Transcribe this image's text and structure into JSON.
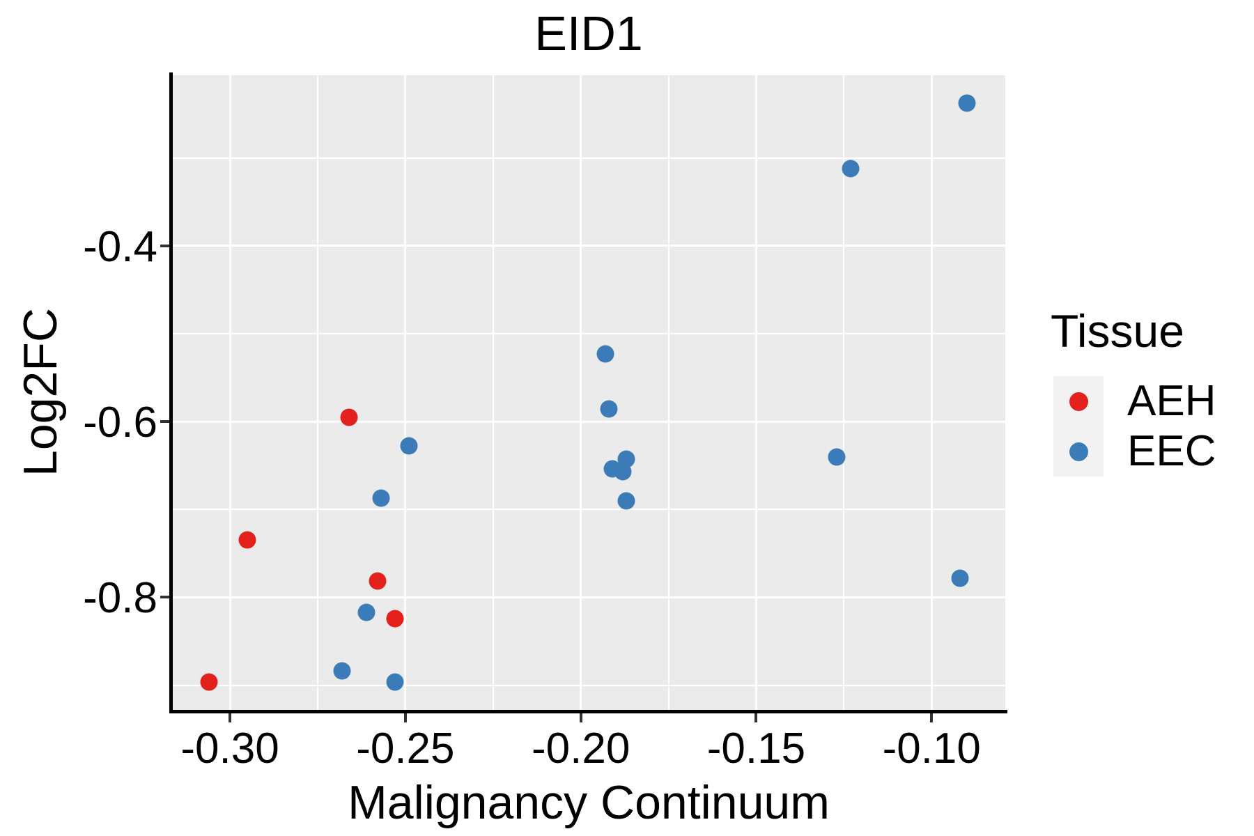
{
  "title": "EID1",
  "axes": {
    "x": {
      "label": "Malignancy Continuum",
      "domain": [
        -0.3165,
        -0.079
      ],
      "major_ticks": [
        {
          "value": -0.3,
          "label": "-0.30"
        },
        {
          "value": -0.25,
          "label": "-0.25"
        },
        {
          "value": -0.2,
          "label": "-0.20"
        },
        {
          "value": -0.15,
          "label": "-0.15"
        },
        {
          "value": -0.1,
          "label": "-0.10"
        }
      ],
      "minor_gridlines": [
        -0.275,
        -0.225,
        -0.175,
        -0.125
      ]
    },
    "y": {
      "label": "Log2FC",
      "domain": [
        -0.928,
        -0.206
      ],
      "major_ticks": [
        {
          "value": -0.4,
          "label": "-0.4"
        },
        {
          "value": -0.6,
          "label": "-0.6"
        },
        {
          "value": -0.8,
          "label": "-0.8"
        }
      ],
      "minor_gridlines": [
        -0.3,
        -0.5,
        -0.7,
        -0.9
      ]
    }
  },
  "legend": {
    "title": "Tissue",
    "items": [
      {
        "label": "AEH",
        "color": "#E3211C"
      },
      {
        "label": "EEC",
        "color": "#3B7CB8"
      }
    ]
  },
  "style": {
    "panel_background": "#EBEBEB",
    "gridline_color": "#FFFFFF",
    "legend_key_background": "#F2F2F2",
    "axis_line_color": "#000000",
    "aeh_color": "#E3211C",
    "eec_color": "#3B7CB8"
  },
  "chart_data": {
    "type": "scatter",
    "title": "EID1",
    "xlabel": "Malignancy Continuum",
    "ylabel": "Log2FC",
    "xlim": [
      -0.3165,
      -0.079
    ],
    "ylim": [
      -0.928,
      -0.206
    ],
    "grid": "on",
    "legend_position": "right",
    "legend_title": "Tissue",
    "series": [
      {
        "name": "AEH",
        "color": "#E3211C",
        "points": [
          {
            "x": -0.266,
            "y": -0.595
          },
          {
            "x": -0.295,
            "y": -0.735
          },
          {
            "x": -0.258,
            "y": -0.781
          },
          {
            "x": -0.253,
            "y": -0.824
          },
          {
            "x": -0.306,
            "y": -0.896
          }
        ]
      },
      {
        "name": "EEC",
        "color": "#3B7CB8",
        "points": [
          {
            "x": -0.09,
            "y": -0.238
          },
          {
            "x": -0.123,
            "y": -0.312
          },
          {
            "x": -0.193,
            "y": -0.523
          },
          {
            "x": -0.192,
            "y": -0.586
          },
          {
            "x": -0.187,
            "y": -0.643
          },
          {
            "x": -0.191,
            "y": -0.654
          },
          {
            "x": -0.188,
            "y": -0.657
          },
          {
            "x": -0.187,
            "y": -0.69
          },
          {
            "x": -0.249,
            "y": -0.628
          },
          {
            "x": -0.257,
            "y": -0.687
          },
          {
            "x": -0.261,
            "y": -0.817
          },
          {
            "x": -0.268,
            "y": -0.884
          },
          {
            "x": -0.253,
            "y": -0.896
          },
          {
            "x": -0.127,
            "y": -0.64
          },
          {
            "x": -0.092,
            "y": -0.778
          }
        ]
      }
    ]
  }
}
